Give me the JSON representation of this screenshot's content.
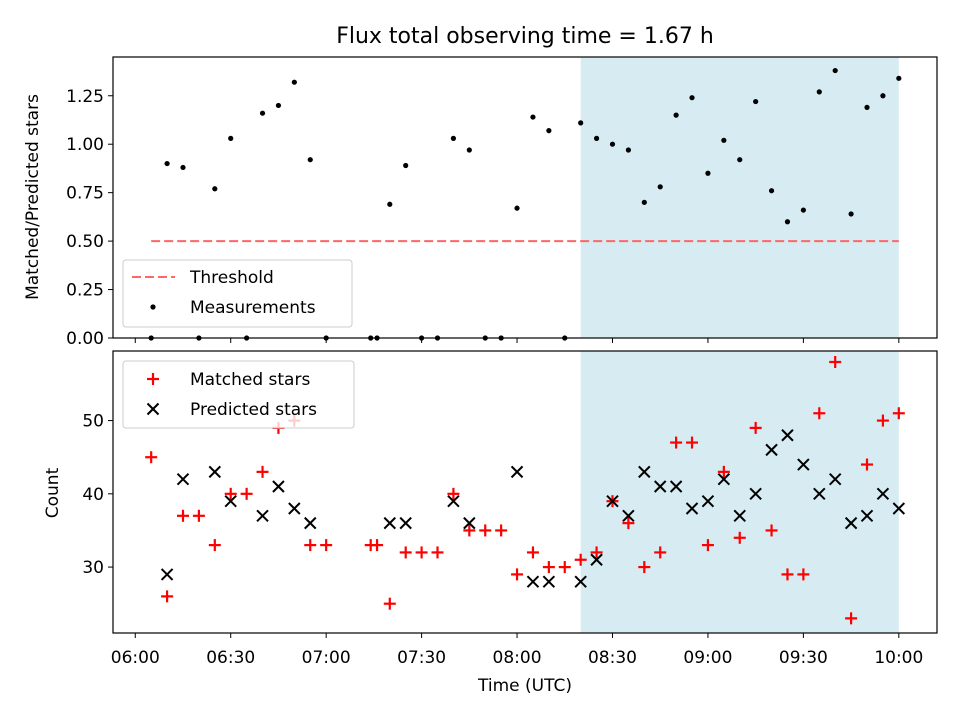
{
  "chart_data": {
    "type": "scatter",
    "title": "Flux total observing time = 1.67 h",
    "xlabel": "Time (UTC)",
    "x_ticks": [
      "06:00",
      "06:30",
      "07:00",
      "07:30",
      "08:00",
      "08:30",
      "09:00",
      "09:30",
      "10:00"
    ],
    "xlim": [
      "05:53",
      "10:12"
    ],
    "shaded_interval": [
      "08:20",
      "10:00"
    ],
    "colors": {
      "shade": "#add8e6",
      "threshold": "#ff6666",
      "matched": "#ff0000",
      "predicted": "#000000",
      "measurement": "#000000"
    },
    "panels": [
      {
        "ylabel": "Matched/Predicted stars",
        "ylim": [
          0,
          1.45
        ],
        "y_ticks": [
          "0.00",
          "0.25",
          "0.50",
          "0.75",
          "1.00",
          "1.25"
        ],
        "legend": "lower-left",
        "threshold": {
          "name": "Threshold",
          "value": 0.5,
          "x_range": [
            "06:05",
            "10:00"
          ]
        },
        "measurements": {
          "name": "Measurements",
          "x": [
            "06:05",
            "06:10",
            "06:15",
            "06:20",
            "06:25",
            "06:30",
            "06:35",
            "06:40",
            "06:45",
            "06:50",
            "06:55",
            "07:00",
            "07:14",
            "07:16",
            "07:20",
            "07:25",
            "07:30",
            "07:35",
            "07:40",
            "07:45",
            "07:50",
            "07:55",
            "08:00",
            "08:05",
            "08:10",
            "08:15",
            "08:20",
            "08:25",
            "08:30",
            "08:35",
            "08:40",
            "08:45",
            "08:50",
            "08:55",
            "09:00",
            "09:05",
            "09:10",
            "09:15",
            "09:20",
            "09:25",
            "09:30",
            "09:35",
            "09:40",
            "09:45",
            "09:50",
            "09:55",
            "10:00"
          ],
          "y": [
            0,
            0.9,
            0.88,
            0,
            0.77,
            1.03,
            0,
            1.16,
            1.2,
            1.32,
            0.92,
            0,
            0,
            0,
            0.69,
            0.89,
            0,
            0,
            1.03,
            0.97,
            0,
            0,
            0.67,
            1.14,
            1.07,
            0,
            1.11,
            1.03,
            1.0,
            0.97,
            0.7,
            0.78,
            1.15,
            1.24,
            0.85,
            1.02,
            0.92,
            1.22,
            0.76,
            0.6,
            0.66,
            1.27,
            1.38,
            0.64,
            1.19,
            1.25,
            1.34
          ]
        }
      },
      {
        "ylabel": "Count",
        "ylim": [
          21,
          59.5
        ],
        "y_ticks": [
          "30",
          "40",
          "50"
        ],
        "legend": "top-left",
        "matched": {
          "name": "Matched stars",
          "x": [
            "06:05",
            "06:10",
            "06:15",
            "06:20",
            "06:25",
            "06:30",
            "06:35",
            "06:40",
            "06:45",
            "06:50",
            "06:55",
            "07:00",
            "07:14",
            "07:16",
            "07:20",
            "07:25",
            "07:30",
            "07:35",
            "07:40",
            "07:45",
            "07:50",
            "07:55",
            "08:00",
            "08:05",
            "08:10",
            "08:15",
            "08:20",
            "08:25",
            "08:30",
            "08:35",
            "08:40",
            "08:45",
            "08:50",
            "08:55",
            "09:00",
            "09:05",
            "09:10",
            "09:15",
            "09:20",
            "09:25",
            "09:30",
            "09:35",
            "09:40",
            "09:45",
            "09:50",
            "09:55",
            "10:00"
          ],
          "y": [
            45,
            26,
            37,
            37,
            33,
            40,
            40,
            43,
            49,
            50,
            33,
            33,
            33,
            33,
            25,
            32,
            32,
            32,
            40,
            35,
            35,
            35,
            29,
            32,
            30,
            30,
            31,
            32,
            39,
            36,
            30,
            32,
            47,
            47,
            33,
            43,
            34,
            49,
            35,
            29,
            29,
            51,
            58,
            23,
            44,
            50,
            51
          ]
        },
        "predicted": {
          "name": "Predicted stars",
          "x": [
            "06:10",
            "06:15",
            "06:25",
            "06:30",
            "06:40",
            "06:45",
            "06:50",
            "06:55",
            "07:20",
            "07:25",
            "07:40",
            "07:45",
            "08:00",
            "08:05",
            "08:10",
            "08:20",
            "08:25",
            "08:30",
            "08:35",
            "08:40",
            "08:45",
            "08:50",
            "08:55",
            "09:00",
            "09:05",
            "09:10",
            "09:15",
            "09:20",
            "09:25",
            "09:30",
            "09:35",
            "09:40",
            "09:45",
            "09:50",
            "09:55",
            "10:00"
          ],
          "y": [
            29,
            42,
            43,
            39,
            37,
            41,
            38,
            36,
            36,
            36,
            39,
            36,
            43,
            28,
            28,
            28,
            31,
            39,
            37,
            43,
            41,
            41,
            38,
            39,
            42,
            37,
            40,
            46,
            48,
            44,
            40,
            42,
            36,
            37,
            40,
            38
          ]
        }
      }
    ]
  }
}
